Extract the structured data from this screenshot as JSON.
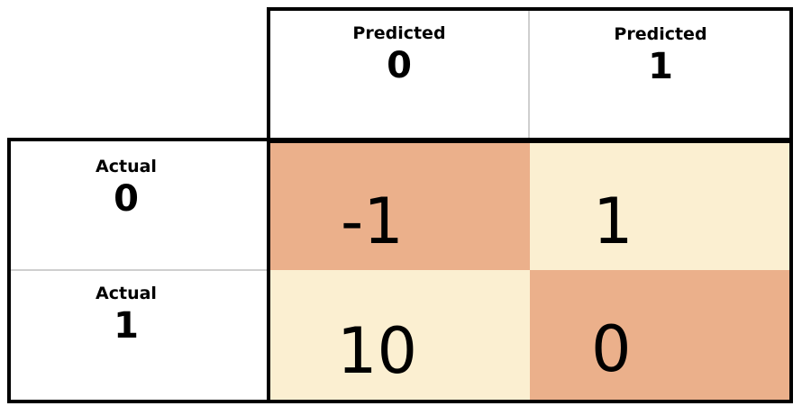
{
  "columns": [
    {
      "label": "Predicted",
      "value": "0"
    },
    {
      "label": "Predicted",
      "value": "1"
    }
  ],
  "rows": [
    {
      "label": "Actual",
      "value": "0",
      "cells": [
        "-1",
        "1"
      ]
    },
    {
      "label": "Actual",
      "value": "1",
      "cells": [
        "10",
        "0"
      ]
    }
  ],
  "colors": {
    "diagonal": "#ebb08b",
    "offdiagonal": "#fbefd1",
    "border": "#000000"
  }
}
